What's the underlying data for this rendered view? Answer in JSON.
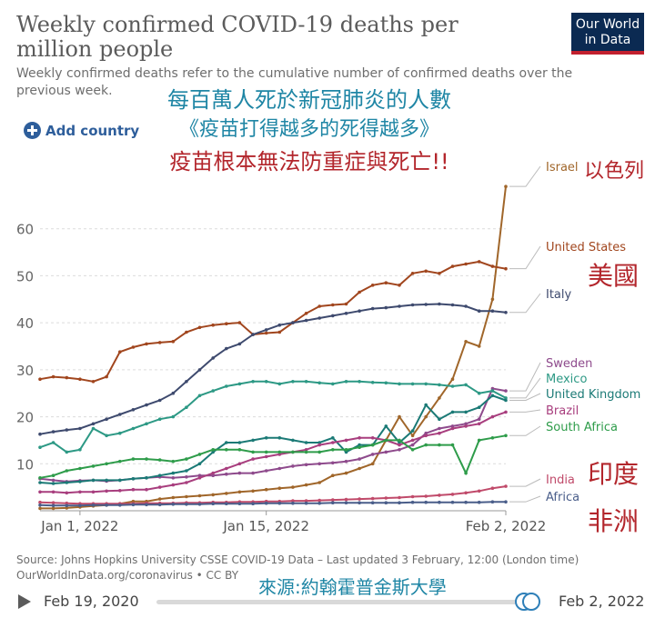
{
  "header": {
    "title": "Weekly confirmed COVID-19 deaths per million people",
    "subtitle": "Weekly confirmed deaths refer to the cumulative number of confirmed deaths over the previous week.",
    "logo_line1": "Our World",
    "logo_line2": "in Data",
    "add_country_label": "Add country"
  },
  "annotations": {
    "zh_line1": "每百萬人死於新冠肺炎的人數",
    "zh_line2": "《疫苗打得越多的死得越多》",
    "zh_line3": "疫苗根本無法防重症與死亡!!",
    "zh_israel": "以色列",
    "zh_us": "美國",
    "zh_india": "印度",
    "zh_africa": "非洲",
    "zh_source": "來源:約翰霍普金斯大學"
  },
  "footer": {
    "source": "Source: Johns Hopkins University CSSE COVID-19 Data – Last updated 3 February, 12:00 (London time)",
    "credit": "OurWorldInData.org/coronavirus • CC BY"
  },
  "timeline": {
    "start_label": "Feb 19, 2020",
    "end_label": "Feb 2, 2022",
    "selection_start": 0.98,
    "selection_end": 1.0
  },
  "chart_data": {
    "type": "line",
    "title": "Weekly confirmed COVID-19 deaths per million people",
    "ylim": [
      0,
      70
    ],
    "yticks": [
      10,
      20,
      30,
      40,
      50,
      60
    ],
    "xlim": [
      "2021-12-29",
      "2022-02-02"
    ],
    "xticks": [
      {
        "label": "Jan 1, 2022",
        "day": "2022-01-01"
      },
      {
        "label": "Jan 15, 2022",
        "day": "2022-01-15"
      },
      {
        "label": "Feb 2, 2022",
        "day": "2022-02-02"
      }
    ],
    "grid": true,
    "legend": "right, inline labels at line ends",
    "x": [
      "2021-12-29",
      "2021-12-30",
      "2021-12-31",
      "2022-01-01",
      "2022-01-02",
      "2022-01-03",
      "2022-01-04",
      "2022-01-05",
      "2022-01-06",
      "2022-01-07",
      "2022-01-08",
      "2022-01-09",
      "2022-01-10",
      "2022-01-11",
      "2022-01-12",
      "2022-01-13",
      "2022-01-14",
      "2022-01-15",
      "2022-01-16",
      "2022-01-17",
      "2022-01-18",
      "2022-01-19",
      "2022-01-20",
      "2022-01-21",
      "2022-01-22",
      "2022-01-23",
      "2022-01-24",
      "2022-01-25",
      "2022-01-26",
      "2022-01-27",
      "2022-01-28",
      "2022-01-29",
      "2022-01-30",
      "2022-01-31",
      "2022-02-01",
      "2022-02-02"
    ],
    "series": [
      {
        "name": "Israel",
        "color": "#a0662a",
        "values": [
          0.5,
          0.5,
          0.6,
          0.8,
          1.0,
          1.2,
          1.5,
          2.0,
          2.0,
          2.5,
          2.8,
          3.0,
          3.2,
          3.4,
          3.7,
          4.0,
          4.2,
          4.5,
          4.8,
          5.0,
          5.5,
          6.0,
          7.5,
          8.0,
          9.0,
          10.0,
          15.0,
          20.0,
          16.0,
          20.0,
          24.0,
          28.0,
          36.0,
          35.0,
          45.0,
          69.0
        ]
      },
      {
        "name": "United States",
        "color": "#a1461e",
        "values": [
          28.0,
          28.5,
          28.3,
          28.0,
          27.5,
          28.5,
          33.8,
          34.8,
          35.5,
          35.8,
          36.0,
          38.0,
          39.0,
          39.5,
          39.8,
          40.0,
          37.5,
          37.8,
          38.0,
          40.0,
          42.0,
          43.5,
          43.8,
          44.0,
          46.5,
          48.0,
          48.5,
          48.0,
          50.5,
          51.0,
          50.5,
          52.0,
          52.5,
          53.0,
          52.0,
          51.5
        ]
      },
      {
        "name": "Italy",
        "color": "#3e4a6e",
        "values": [
          16.3,
          16.8,
          17.2,
          17.5,
          18.5,
          19.5,
          20.5,
          21.5,
          22.5,
          23.5,
          25.0,
          27.5,
          30.0,
          32.5,
          34.5,
          35.5,
          37.5,
          38.5,
          39.5,
          40.0,
          40.5,
          41.0,
          41.5,
          42.0,
          42.5,
          43.0,
          43.2,
          43.5,
          43.8,
          43.9,
          44.0,
          43.8,
          43.5,
          42.5,
          42.5,
          42.2
        ]
      },
      {
        "name": "Sweden",
        "color": "#8e4a8c",
        "values": [
          6.8,
          6.5,
          6.2,
          6.4,
          6.5,
          6.3,
          6.5,
          6.8,
          7.0,
          7.2,
          7.0,
          7.2,
          7.5,
          7.5,
          7.8,
          8.0,
          8.0,
          8.5,
          9.0,
          9.5,
          9.8,
          10.0,
          10.2,
          10.5,
          11.0,
          12.0,
          12.5,
          13.0,
          14.0,
          16.5,
          17.5,
          18.0,
          18.5,
          19.5,
          26.0,
          25.5
        ]
      },
      {
        "name": "Mexico",
        "color": "#2d9985",
        "values": [
          13.5,
          14.5,
          12.5,
          13.0,
          17.5,
          16.0,
          16.5,
          17.5,
          18.5,
          19.5,
          20.0,
          22.0,
          24.5,
          25.5,
          26.5,
          27.0,
          27.5,
          27.5,
          27.0,
          27.5,
          27.5,
          27.2,
          27.0,
          27.5,
          27.5,
          27.3,
          27.2,
          27.0,
          27.0,
          27.0,
          26.8,
          26.5,
          26.8,
          25.0,
          25.5,
          24.0
        ]
      },
      {
        "name": "United Kingdom",
        "color": "#1b7a76",
        "values": [
          6.0,
          5.8,
          6.0,
          6.2,
          6.5,
          6.5,
          6.5,
          6.8,
          7.0,
          7.5,
          8.0,
          8.5,
          10.0,
          12.5,
          14.5,
          14.5,
          15.0,
          15.5,
          15.5,
          15.0,
          14.5,
          14.5,
          15.5,
          12.5,
          14.0,
          14.0,
          18.0,
          14.5,
          17.0,
          22.5,
          19.5,
          21.0,
          21.0,
          22.0,
          24.5,
          23.5
        ]
      },
      {
        "name": "Brazil",
        "color": "#a83e7e",
        "values": [
          4.0,
          4.0,
          3.8,
          4.0,
          4.0,
          4.2,
          4.3,
          4.5,
          4.5,
          5.0,
          5.5,
          6.0,
          7.0,
          8.0,
          9.0,
          10.0,
          11.0,
          11.5,
          12.0,
          12.5,
          13.0,
          14.0,
          14.5,
          15.0,
          15.5,
          15.5,
          15.0,
          14.0,
          15.0,
          16.0,
          16.5,
          17.5,
          18.0,
          18.5,
          20.0,
          21.0
        ]
      },
      {
        "name": "South Africa",
        "color": "#2e9c4a",
        "values": [
          7.0,
          7.5,
          8.5,
          9.0,
          9.5,
          10.0,
          10.5,
          11.0,
          11.0,
          10.8,
          10.5,
          11.0,
          12.0,
          13.0,
          13.0,
          13.0,
          12.5,
          12.5,
          12.5,
          12.5,
          12.5,
          12.5,
          13.0,
          13.0,
          13.5,
          14.0,
          15.0,
          15.0,
          13.0,
          14.0,
          14.0,
          14.0,
          8.0,
          15.0,
          15.5,
          16.0
        ]
      },
      {
        "name": "India",
        "color": "#c04a6a",
        "values": [
          1.8,
          1.7,
          1.6,
          1.5,
          1.5,
          1.5,
          1.5,
          1.5,
          1.6,
          1.6,
          1.6,
          1.7,
          1.7,
          1.8,
          1.8,
          1.9,
          1.9,
          2.0,
          2.0,
          2.1,
          2.1,
          2.2,
          2.3,
          2.4,
          2.5,
          2.6,
          2.7,
          2.8,
          3.0,
          3.1,
          3.3,
          3.5,
          3.8,
          4.2,
          4.8,
          5.2
        ]
      },
      {
        "name": "Africa",
        "color": "#4a5e8a",
        "values": [
          1.2,
          1.1,
          1.1,
          1.1,
          1.2,
          1.2,
          1.2,
          1.3,
          1.3,
          1.3,
          1.4,
          1.4,
          1.4,
          1.5,
          1.5,
          1.5,
          1.5,
          1.6,
          1.6,
          1.6,
          1.6,
          1.6,
          1.7,
          1.7,
          1.7,
          1.7,
          1.7,
          1.7,
          1.8,
          1.8,
          1.8,
          1.8,
          1.8,
          1.8,
          1.9,
          1.9
        ]
      }
    ]
  }
}
